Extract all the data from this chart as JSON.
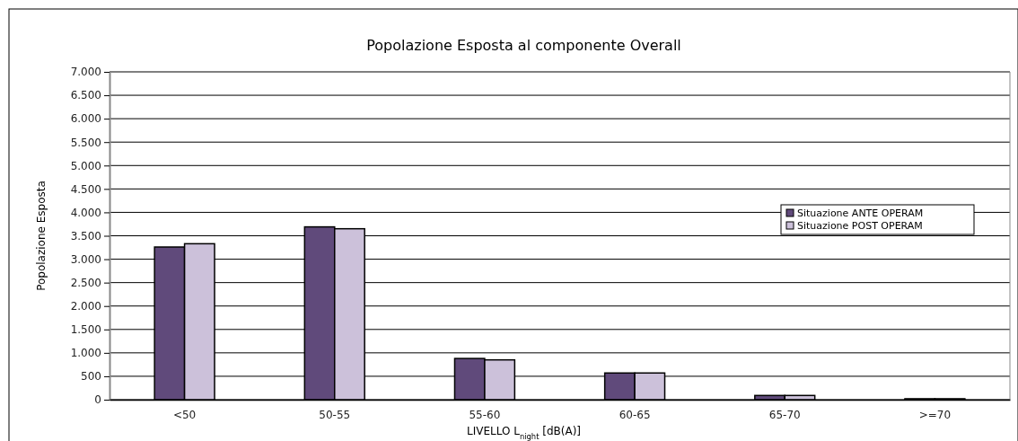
{
  "chart_data": {
    "type": "bar",
    "title": "Popolazione Esposta al componente Overall",
    "xlabel": "LIVELLO L$_{night}$ [dB(A)]",
    "ylabel": "Popolazione Esposta",
    "categories": [
      "<50",
      "50-55",
      "55-60",
      "60-65",
      "65-70",
      ">=70"
    ],
    "series": [
      {
        "name": "Situazione ANTE OPERAM",
        "color": "#604a7b",
        "values": [
          3260,
          3690,
          880,
          570,
          90,
          20
        ]
      },
      {
        "name": "Situazione POST OPERAM",
        "color": "#ccc1da",
        "values": [
          3330,
          3650,
          850,
          570,
          90,
          20
        ]
      }
    ],
    "ylim": [
      0,
      7000
    ],
    "yticks": [
      {
        "value": 0,
        "label": "0"
      },
      {
        "value": 500,
        "label": "500"
      },
      {
        "value": 1000,
        "label": "1.000"
      },
      {
        "value": 1500,
        "label": "1.500"
      },
      {
        "value": 2000,
        "label": "2.000"
      },
      {
        "value": 2500,
        "label": "2.500"
      },
      {
        "value": 3000,
        "label": "3.000"
      },
      {
        "value": 3500,
        "label": "3.500"
      },
      {
        "value": 4000,
        "label": "4.000"
      },
      {
        "value": 4500,
        "label": "4.500"
      },
      {
        "value": 5000,
        "label": "5.000"
      },
      {
        "value": 5500,
        "label": "5.500"
      },
      {
        "value": 6000,
        "label": "6.000"
      },
      {
        "value": 6500,
        "label": "6.500"
      },
      {
        "value": 7000,
        "label": "7.000"
      }
    ],
    "grid": "y",
    "legend": "right"
  }
}
